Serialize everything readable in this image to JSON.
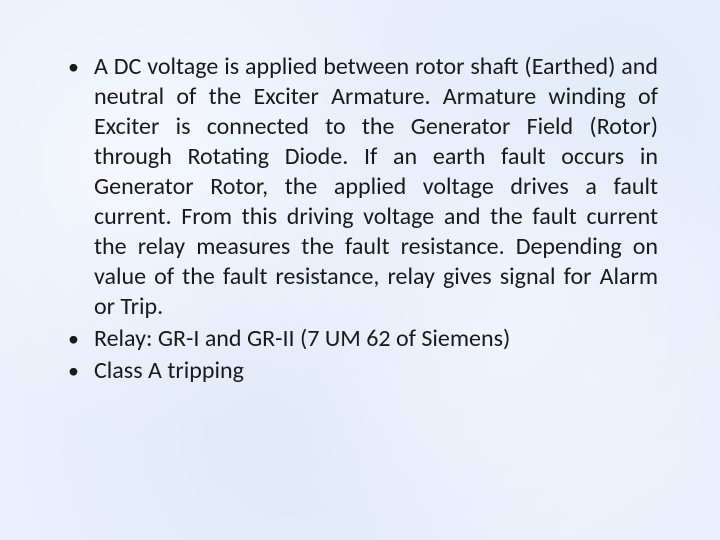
{
  "slide": {
    "background_color": "#eaf0fb",
    "text_color": "#1a1a1a",
    "font_family": "Calibri",
    "bullets": [
      {
        "text": "A DC voltage is applied between rotor shaft (Earthed) and neutral of the Exciter Armature. Armature winding of Exciter is connected to the Generator Field (Rotor) through Rotating Diode. If an earth fault occurs in Generator Rotor, the applied voltage drives a fault current. From this driving voltage and the fault current the relay measures the fault resistance. Depending on value of the fault resistance, relay gives signal for Alarm or Trip.",
        "justify": true,
        "fontsize_pt": 18
      },
      {
        "text": "Relay: GR-I and GR-II (7 UM 62 of Siemens)",
        "justify": false,
        "fontsize_pt": 18
      },
      {
        "text": "Class A tripping",
        "justify": false,
        "fontsize_pt": 18
      }
    ]
  }
}
